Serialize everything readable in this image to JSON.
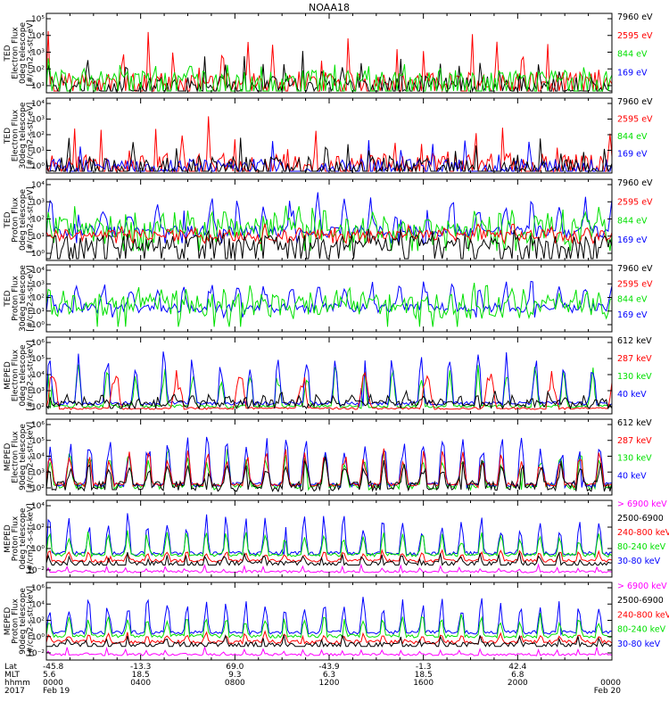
{
  "title": "NOAA18",
  "colors": {
    "blue": "#0000ff",
    "red": "#ff0000",
    "green": "#00e000",
    "black": "#000000",
    "magenta": "#ff00ff"
  },
  "chart_data": [
    {
      "type": "line",
      "ylabel_lines": [
        "TED",
        "Electron Flux",
        "0deg telescope",
        "[#/cm2-s-str-eV]"
      ],
      "yticks": [
        "10¹",
        "10²",
        "10³",
        "10⁴",
        "10⁵"
      ],
      "legend": [
        {
          "label": "7960 eV",
          "color": "black"
        },
        {
          "label": "2595 eV",
          "color": "red"
        },
        {
          "label": "844 eV",
          "color": "green"
        },
        {
          "label": "169 eV",
          "color": "blue"
        }
      ]
    },
    {
      "type": "line",
      "ylabel_lines": [
        "TED",
        "Electron Flux",
        "30deg telescope",
        "[#/cm2-s-str-eV]"
      ],
      "yticks": [
        "10⁰",
        "10¹",
        "10²",
        "10³",
        "10⁴"
      ],
      "legend": [
        {
          "label": "7960 eV",
          "color": "black"
        },
        {
          "label": "2595 eV",
          "color": "red"
        },
        {
          "label": "844 eV",
          "color": "green"
        },
        {
          "label": "169 eV",
          "color": "blue"
        }
      ]
    },
    {
      "type": "line",
      "ylabel_lines": [
        "TED",
        "Proton Flux",
        "0deg telescope",
        "[#/cm2-s-str-eV]"
      ],
      "yticks": [
        "10⁰",
        "10¹",
        "10²",
        "10³",
        "10⁴"
      ],
      "legend": [
        {
          "label": "7960 eV",
          "color": "black"
        },
        {
          "label": "2595 eV",
          "color": "red"
        },
        {
          "label": "844 eV",
          "color": "green"
        },
        {
          "label": "169 eV",
          "color": "blue"
        }
      ]
    },
    {
      "type": "line",
      "ylabel_lines": [
        "TED",
        "Proton Flux",
        "30deg telescope",
        "[#/cm2-s-str-eV]"
      ],
      "yticks": [
        "10⁰",
        "10¹",
        "10²",
        "10³",
        "10⁴"
      ],
      "legend": [
        {
          "label": "7960 eV",
          "color": "black"
        },
        {
          "label": "2595 eV",
          "color": "red"
        },
        {
          "label": "844 eV",
          "color": "green"
        },
        {
          "label": "169 eV",
          "color": "blue"
        }
      ]
    },
    {
      "type": "line",
      "ylabel_lines": [
        "MEPED",
        "Electron Flux",
        "0deg telescope",
        "[#/cm2-s-str-keV]"
      ],
      "yticks": [
        "10²",
        "10³",
        "10⁴",
        "10⁵",
        "10⁶"
      ],
      "legend": [
        {
          "label": "612 keV",
          "color": "black"
        },
        {
          "label": "287 keV",
          "color": "red"
        },
        {
          "label": "130 keV",
          "color": "green"
        },
        {
          "label": "40 keV",
          "color": "blue"
        }
      ]
    },
    {
      "type": "line",
      "ylabel_lines": [
        "MEPED",
        "Electron Flux",
        "90deg telescope",
        "[#/cm2-s-str-keV]"
      ],
      "yticks": [
        "10²",
        "10³",
        "10⁴",
        "10⁵",
        "10⁶"
      ],
      "legend": [
        {
          "label": "612 keV",
          "color": "black"
        },
        {
          "label": "287 keV",
          "color": "red"
        },
        {
          "label": "130 keV",
          "color": "green"
        },
        {
          "label": "40 keV",
          "color": "blue"
        }
      ]
    },
    {
      "type": "line",
      "ylabel_lines": [
        "MEPED",
        "Proton Flux",
        "0deg telescope",
        "[#/cm2-s-str-keV]"
      ],
      "yticks": [
        "10⁻²",
        "10⁰",
        "10²",
        "10⁴"
      ],
      "legend": [
        {
          "label": "> 6900 keV",
          "color": "magenta"
        },
        {
          "label": "2500-6900",
          "color": "black"
        },
        {
          "label": "240-800 keV",
          "color": "red"
        },
        {
          "label": "80-240 keV",
          "color": "green"
        },
        {
          "label": "30-80 keV",
          "color": "blue"
        }
      ]
    },
    {
      "type": "line",
      "ylabel_lines": [
        "MEPED",
        "Proton Flux",
        "90deg telescope",
        "[#/cm2-s-str-keV]"
      ],
      "yticks": [
        "10⁻²",
        "10⁰",
        "10²",
        "10⁴",
        "10⁶"
      ],
      "legend": [
        {
          "label": "> 6900 keV",
          "color": "magenta"
        },
        {
          "label": "2500-6900",
          "color": "black"
        },
        {
          "label": "240-800 keV",
          "color": "red"
        },
        {
          "label": "80-240 keV",
          "color": "green"
        },
        {
          "label": "30-80 keV",
          "color": "blue"
        }
      ]
    }
  ],
  "xaxis": {
    "row_labels": [
      "Lat",
      "MLT",
      "hhmm",
      "2017"
    ],
    "ticks": [
      {
        "lat": "-45.8",
        "mlt": "5.6",
        "hhmm": "0000",
        "date": "Feb 19"
      },
      {
        "lat": "-13.3",
        "mlt": "18.5",
        "hhmm": "0400",
        "date": ""
      },
      {
        "lat": "69.0",
        "mlt": "9.3",
        "hhmm": "0800",
        "date": ""
      },
      {
        "lat": "-43.9",
        "mlt": "6.3",
        "hhmm": "1200",
        "date": ""
      },
      {
        "lat": "-1.3",
        "mlt": "18.5",
        "hhmm": "1600",
        "date": ""
      },
      {
        "lat": "42.4",
        "mlt": "6.8",
        "hhmm": "2000",
        "date": ""
      },
      {
        "lat": "",
        "mlt": "",
        "hhmm": "0000",
        "date": "Feb 20"
      }
    ]
  }
}
